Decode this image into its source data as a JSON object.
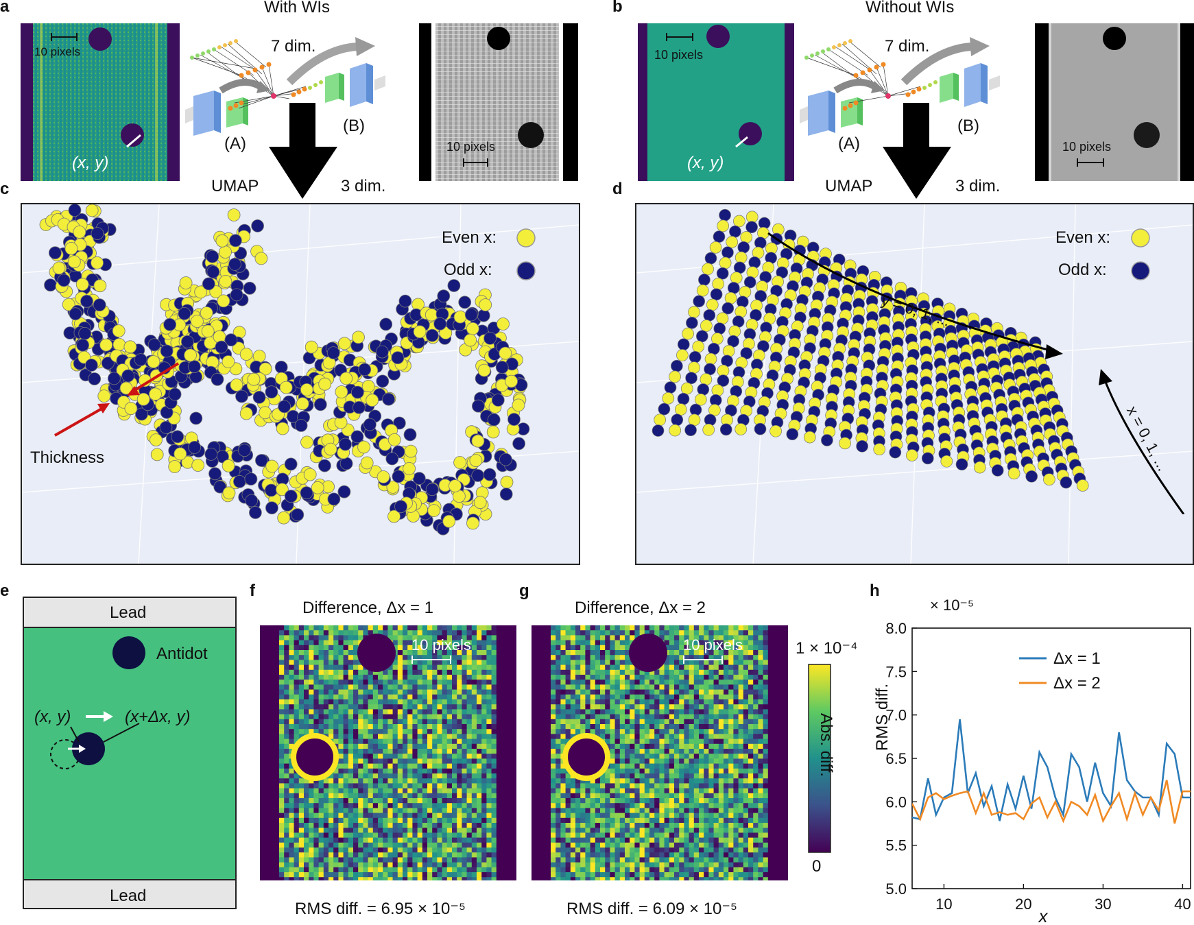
{
  "panels": {
    "a": "a",
    "b": "b",
    "c": "c",
    "d": "d",
    "e": "e",
    "f": "f",
    "g": "g",
    "h": "h"
  },
  "top_left": {
    "title": "With WIs",
    "dim7": "7 dim.",
    "dim3": "3 dim.",
    "umap": "UMAP",
    "branch_a": "(A)",
    "branch_b": "(B)",
    "coord": "(x, y)",
    "scale_label_1": "10 pixels",
    "scale_label_2": "10 pixels"
  },
  "top_right": {
    "title": "Without WIs",
    "dim7": "7 dim.",
    "dim3": "3 dim.",
    "umap": "UMAP",
    "branch_a": "(A)",
    "branch_b": "(B)",
    "coord": "(x, y)",
    "scale_label_1": "10 pixels",
    "scale_label_2": "10 pixels"
  },
  "panel_c": {
    "legend_even": "Even x:",
    "legend_odd": "Odd x:",
    "annotation": "Thickness"
  },
  "panel_d": {
    "legend_even": "Even x:",
    "legend_odd": "Odd x:",
    "y_arrow": "y = 0, 1, ...",
    "x_arrow": "x = 0, 1, ..."
  },
  "panel_e": {
    "lead_top": "Lead",
    "lead_bottom": "Lead",
    "antidot": "Antidot",
    "pos_from": "(x, y)",
    "pos_to": "(x+Δx, y)"
  },
  "panel_f": {
    "title": "Difference, Δx = 1",
    "scale": "10 pixels",
    "rms": "RMS diff. = 6.95 × 10⁻⁵"
  },
  "panel_g": {
    "title": "Difference, Δx = 2",
    "scale": "10 pixels",
    "rms": "RMS diff. = 6.09 × 10⁻⁵"
  },
  "colorbar": {
    "max_label": "1 × 10⁻⁴",
    "min_label": "0",
    "label": "Abs. diff."
  },
  "colors": {
    "even": "#f2ee3a",
    "odd": "#161a7a",
    "series1": "#2b7bb9",
    "series2": "#f08a24",
    "device": "#45c07f",
    "arrow_red": "#cc1414"
  },
  "chart_data": {
    "type": "line",
    "title": "",
    "multiplier": "× 10⁻⁵",
    "xlabel": "x",
    "ylabel": "RMS diff.",
    "xlim": [
      6,
      41
    ],
    "ylim": [
      5.0,
      8.0
    ],
    "xticks": [
      10,
      20,
      30,
      40
    ],
    "yticks": [
      5.0,
      5.5,
      6.0,
      6.5,
      7.0,
      7.5,
      8.0
    ],
    "ytick_labels": [
      "5.0",
      "5.5",
      "6.0",
      "6.5",
      "7.0",
      "7.5",
      "8.0"
    ],
    "x": [
      6,
      7,
      8,
      9,
      10,
      11,
      12,
      13,
      14,
      15,
      16,
      17,
      18,
      19,
      20,
      21,
      22,
      23,
      24,
      25,
      26,
      27,
      28,
      29,
      30,
      31,
      32,
      33,
      34,
      35,
      36,
      37,
      38,
      39,
      40,
      41
    ],
    "series": [
      {
        "name": "Δx = 1",
        "values": [
          5.82,
          5.8,
          6.27,
          5.85,
          6.05,
          6.1,
          6.95,
          6.1,
          6.33,
          5.95,
          6.18,
          5.78,
          6.2,
          5.92,
          6.3,
          5.92,
          6.57,
          6.4,
          6.05,
          5.85,
          6.55,
          6.4,
          6.0,
          6.45,
          6.1,
          5.95,
          6.8,
          6.25,
          6.12,
          6.05,
          6.05,
          5.85,
          6.67,
          6.55,
          6.05,
          6.05
        ]
      },
      {
        "name": "Δx = 2",
        "values": [
          5.98,
          5.8,
          6.05,
          6.1,
          6.03,
          6.07,
          6.1,
          6.12,
          5.87,
          6.1,
          5.85,
          5.88,
          5.85,
          5.87,
          5.8,
          5.98,
          6.05,
          5.82,
          6.0,
          5.78,
          6.0,
          5.95,
          5.85,
          6.08,
          5.78,
          5.95,
          6.1,
          5.8,
          6.1,
          5.85,
          6.05,
          5.9,
          6.25,
          5.75,
          6.12,
          6.12
        ]
      }
    ]
  }
}
